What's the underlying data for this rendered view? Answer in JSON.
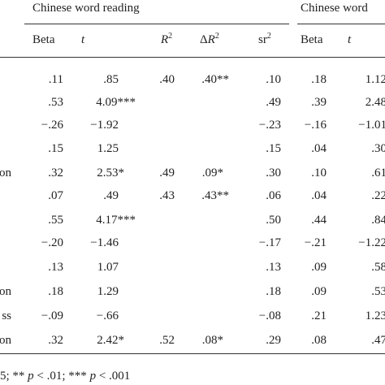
{
  "header": {
    "group1": "Chinese word reading",
    "group2": "Chinese word",
    "columns": [
      {
        "text": "Beta"
      },
      {
        "text": "t",
        "italic": true
      },
      {
        "text": "R",
        "italic": true,
        "sup": "2"
      },
      {
        "prefix": "Δ",
        "text": "R",
        "italic": true,
        "sup": "2"
      },
      {
        "text": "sr",
        "sup": "2"
      },
      {
        "text": "Beta"
      },
      {
        "text": "t",
        "italic": true
      }
    ]
  },
  "rows": [
    {
      "cells": [
        ".11",
        ".85",
        ".40",
        ".40**",
        ".10",
        ".18",
        "1.12"
      ]
    },
    {
      "cells": [
        ".53",
        "4.09***",
        null,
        null,
        ".49",
        ".39",
        "2.48"
      ]
    },
    {
      "cells": [
        "−.26",
        "−1.92",
        null,
        null,
        "−.23",
        "−.16",
        "−1.01"
      ]
    },
    {
      "cells": [
        ".15",
        "1.25",
        null,
        null,
        ".15",
        ".04",
        ".30"
      ]
    },
    {
      "label": "on",
      "cells": [
        ".32",
        "2.53*",
        ".49",
        ".09*",
        ".30",
        ".10",
        ".61"
      ]
    },
    {
      "cells": [
        ".07",
        ".49",
        ".43",
        ".43**",
        ".06",
        ".04",
        ".22"
      ]
    },
    {
      "cells": [
        ".55",
        "4.17***",
        null,
        null,
        ".50",
        ".44",
        ".84"
      ]
    },
    {
      "cells": [
        "−.20",
        "−1.46",
        null,
        null,
        "−.17",
        "−.21",
        "−1.22"
      ]
    },
    {
      "cells": [
        ".13",
        "1.07",
        null,
        null,
        ".13",
        ".09",
        ".58"
      ]
    },
    {
      "label": "on",
      "cells": [
        ".18",
        "1.29",
        null,
        null,
        ".18",
        ".09",
        ".53"
      ]
    },
    {
      "label": "ss",
      "cells": [
        "−.09",
        "−.66",
        null,
        null,
        "−.08",
        ".21",
        "1.23"
      ]
    },
    {
      "label": "on",
      "cells": [
        ".32",
        "2.42*",
        ".52",
        ".08*",
        ".29",
        ".08",
        ".47"
      ]
    }
  ],
  "footnote": [
    {
      "text": "5; ** "
    },
    {
      "text": "p",
      "italic": true
    },
    {
      "text": " < .01; *** "
    },
    {
      "text": "p",
      "italic": true
    },
    {
      "text": " < .001"
    }
  ]
}
